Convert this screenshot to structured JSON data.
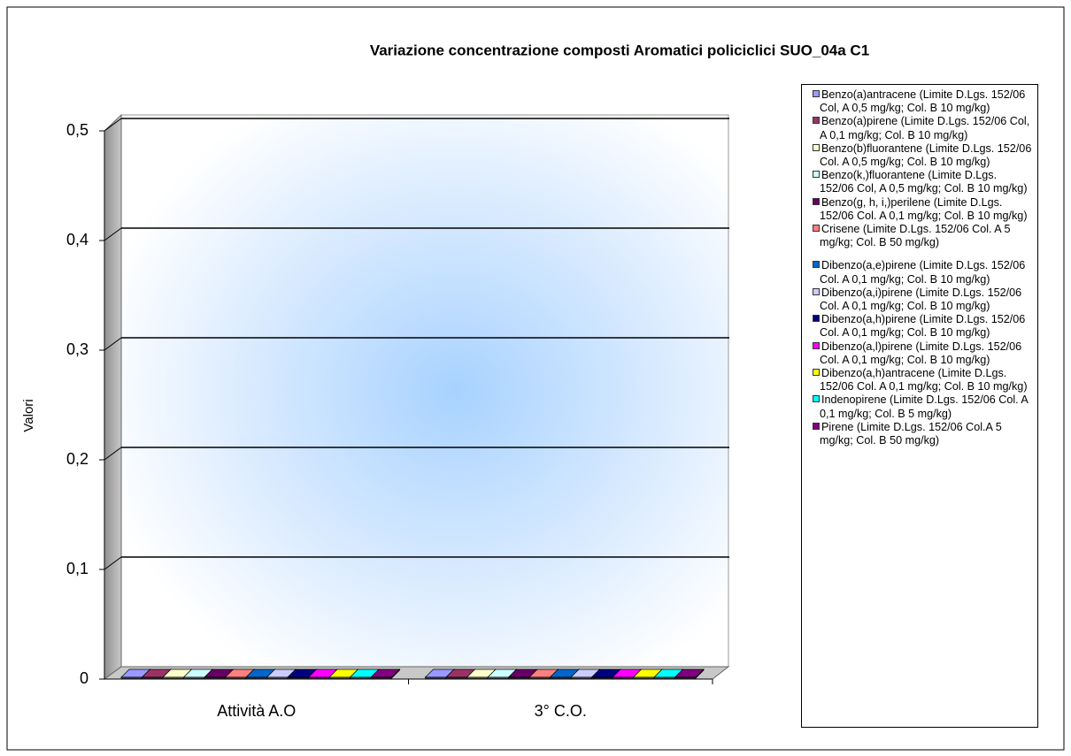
{
  "chart_data": {
    "type": "bar3d",
    "title": "Variazione concentrazione composti Aromatici policiclici  SUO_04a C1",
    "y_label": "Valori",
    "categories": [
      "Attività A.O",
      "3°  C.O."
    ],
    "series": [
      {
        "name": "Benzo(a)antracene (Limite D.Lgs. 152/06 Col, A 0,5 mg/kg; Col. B 10 mg/kg)",
        "color": "#9999ff",
        "values": [
          0,
          0
        ]
      },
      {
        "name": "Benzo(a)pirene (Limite D.Lgs. 152/06 Col, A 0,1 mg/kg; Col. B 10 mg/kg)",
        "color": "#993366",
        "values": [
          0,
          0
        ]
      },
      {
        "name": "Benzo(b)fluorantene  (Limite D.Lgs. 152/06 Col. A 0,5 mg/kg; Col. B 10 mg/kg)",
        "color": "#ffffcc",
        "values": [
          0,
          0
        ]
      },
      {
        "name": "Benzo(k,)fluorantene  (Limite D.Lgs. 152/06 Col, A 0,5 mg/kg; Col. B 10 mg/kg)",
        "color": "#ccffff",
        "values": [
          0,
          0
        ]
      },
      {
        "name": "Benzo(g, h, i,)perilene  (Limite D.Lgs. 152/06 Col. A 0,1 mg/kg; Col. B 10 mg/kg)",
        "color": "#660066",
        "values": [
          0,
          0
        ]
      },
      {
        "name": "Crisene  (Limite D.Lgs. 152/06 Col. A 5 mg/kg; Col. B 50 mg/kg)",
        "color": "#ff8080",
        "values": [
          0,
          0
        ]
      },
      {
        "name": "Dibenzo(a,e)pirene (Limite D.Lgs. 152/06 Col. A 0,1 mg/kg; Col. B 10 mg/kg)",
        "color": "#0066cc",
        "values": [
          0,
          0
        ]
      },
      {
        "name": "Dibenzo(a,i)pirene (Limite D.Lgs. 152/06 Col. A 0,1 mg/kg; Col. B 10 mg/kg)",
        "color": "#ccccff",
        "values": [
          0,
          0
        ]
      },
      {
        "name": "Dibenzo(a,h)pirene (Limite D.Lgs. 152/06 Col. A 0,1 mg/kg; Col. B 10 mg/kg)",
        "color": "#000080",
        "values": [
          0,
          0
        ]
      },
      {
        "name": "Dibenzo(a,l)pirene (Limite D.Lgs. 152/06 Col. A 0,1 mg/kg; Col. B 10 mg/kg)",
        "color": "#ff00ff",
        "values": [
          0,
          0
        ]
      },
      {
        "name": "Dibenzo(a,h)antracene (Limite D.Lgs. 152/06 Col. A 0,1 mg/kg; Col. B 10 mg/kg)",
        "color": "#ffff00",
        "values": [
          0,
          0
        ]
      },
      {
        "name": "Indenopirene (Limite D.Lgs. 152/06 Col. A 0,1 mg/kg; Col. B 5 mg/kg)",
        "color": "#00ffff",
        "values": [
          0,
          0
        ]
      },
      {
        "name": "Pirene (Limite D.Lgs. 152/06 Col.A 5 mg/kg; Col. B 50 mg/kg)",
        "color": "#800080",
        "values": [
          0,
          0
        ]
      }
    ],
    "ylim": [
      0,
      0.5
    ],
    "yticks": [
      0,
      {
        "value": 0.1,
        "label": "0,1"
      },
      {
        "value": 0.2,
        "label": "0,2"
      },
      {
        "value": 0.3,
        "label": "0,3"
      },
      {
        "value": 0.4,
        "label": "0,4"
      },
      {
        "value": 0.5,
        "label": "0,5"
      }
    ],
    "grid": true,
    "legend": "right"
  }
}
